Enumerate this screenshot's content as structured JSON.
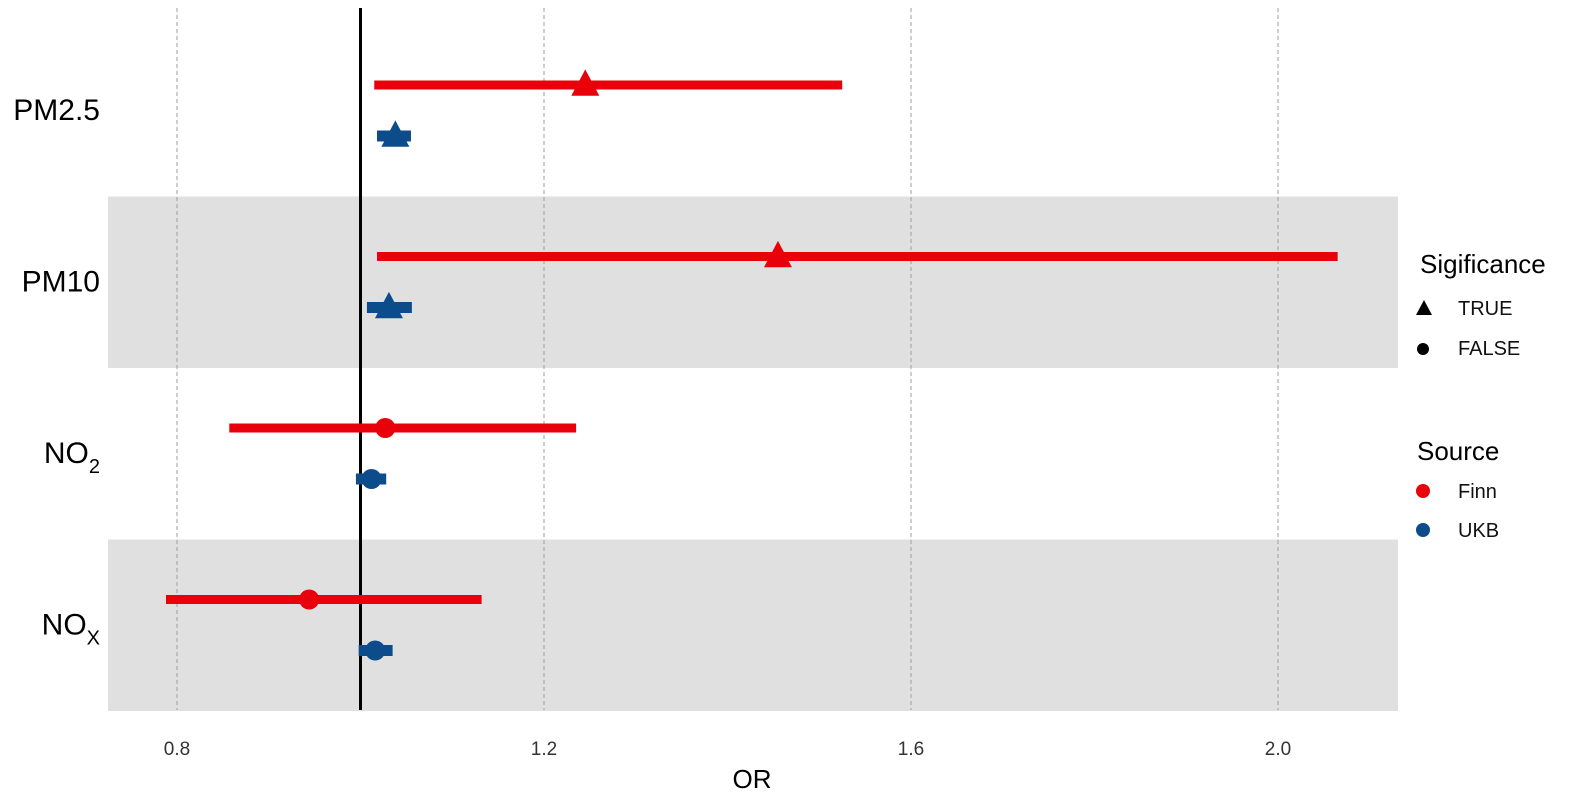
{
  "chart_data": {
    "type": "forest",
    "xlabel": "OR",
    "xlim": [
      0.72,
      2.12
    ],
    "xticks": [
      0.8,
      1.2,
      1.6,
      2.0
    ],
    "xtick_labels": [
      "0.8",
      "1.2",
      "1.6",
      "2.0"
    ],
    "reference_line": 1.0,
    "grid": "vertical dashed",
    "categories": [
      {
        "label": "PM2.5",
        "sub": "",
        "shaded": false
      },
      {
        "label": "PM10",
        "sub": "",
        "shaded": true
      },
      {
        "label": "NO",
        "sub": "2",
        "shaded": false
      },
      {
        "label": "NO",
        "sub": "X",
        "shaded": true
      }
    ],
    "series": [
      {
        "name": "Finn",
        "color": "#e8000b",
        "points": [
          {
            "category": "PM2.5",
            "or": 1.245,
            "lower": 1.015,
            "upper": 1.525,
            "significance": "TRUE"
          },
          {
            "category": "PM10",
            "or": 1.455,
            "lower": 1.018,
            "upper": 2.065,
            "significance": "TRUE"
          },
          {
            "category": "NO2",
            "or": 1.027,
            "lower": 0.857,
            "upper": 1.235,
            "significance": "FALSE"
          },
          {
            "category": "NOX",
            "or": 0.944,
            "lower": 0.788,
            "upper": 1.132,
            "significance": "FALSE"
          }
        ]
      },
      {
        "name": "UKB",
        "color": "#0c4c8a",
        "points": [
          {
            "category": "PM2.5",
            "or": 1.038,
            "lower": 1.018,
            "upper": 1.055,
            "significance": "TRUE"
          },
          {
            "category": "PM10",
            "or": 1.031,
            "lower": 1.007,
            "upper": 1.056,
            "significance": "TRUE"
          },
          {
            "category": "NO2",
            "or": 1.012,
            "lower": 0.995,
            "upper": 1.028,
            "significance": "FALSE"
          },
          {
            "category": "NOX",
            "or": 1.016,
            "lower": 0.998,
            "upper": 1.035,
            "significance": "FALSE"
          }
        ]
      }
    ],
    "legend": {
      "position": "right",
      "significance_title": "Sigificance",
      "significance_items": [
        {
          "label": "TRUE",
          "shape": "triangle"
        },
        {
          "label": "FALSE",
          "shape": "circle"
        }
      ],
      "source_title": "Source",
      "source_items": [
        {
          "label": "Finn",
          "color": "#e8000b"
        },
        {
          "label": "UKB",
          "color": "#0c4c8a"
        }
      ]
    }
  }
}
